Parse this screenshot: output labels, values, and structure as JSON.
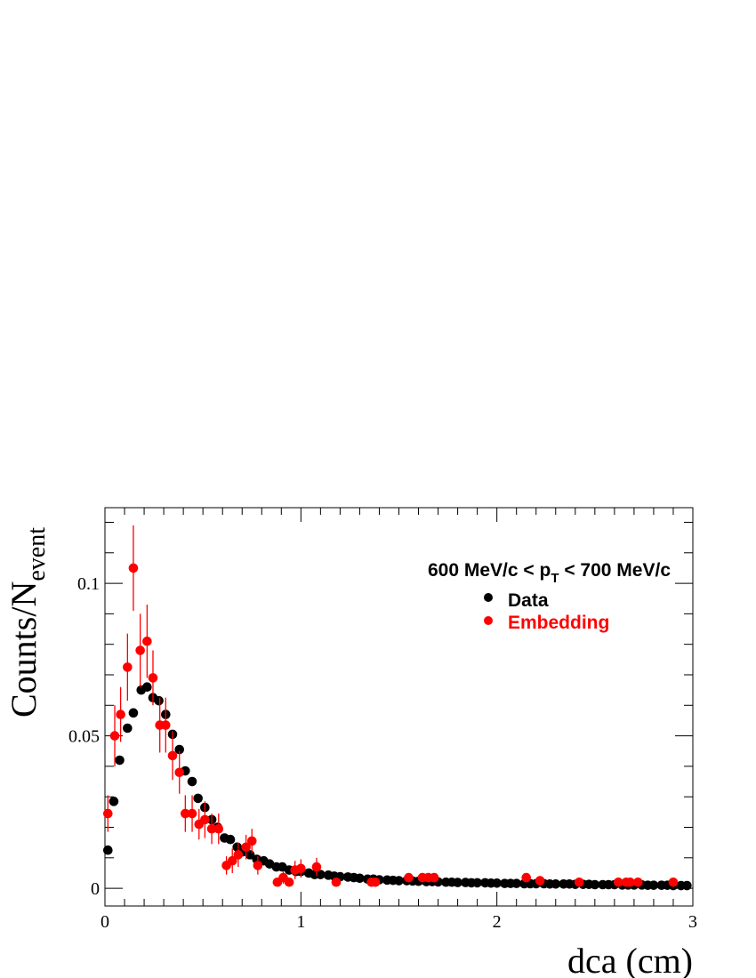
{
  "chart_data": {
    "type": "scatter",
    "xlabel": "dca (cm)",
    "ylabel": "Counts/N",
    "ylabel_sub": "event",
    "xlim": [
      0,
      3
    ],
    "ylim": [
      -0.0058,
      0.1248
    ],
    "x_ticks": [
      0,
      1,
      2,
      3
    ],
    "x_tick_labels": [
      "0",
      "1",
      "2",
      "3"
    ],
    "y_ticks": [
      0,
      0.05,
      0.1
    ],
    "y_tick_labels": [
      "0",
      "0.05",
      "0.1"
    ],
    "grid": false,
    "legend_position": "top-right",
    "annotation": {
      "parts": [
        "600 MeV/c < p",
        "T",
        " < 700 MeV/c"
      ]
    },
    "series": [
      {
        "name": "Data",
        "color": "#000000",
        "x": [
          0.015,
          0.045,
          0.075,
          0.115,
          0.145,
          0.185,
          0.215,
          0.245,
          0.275,
          0.31,
          0.345,
          0.38,
          0.41,
          0.445,
          0.475,
          0.51,
          0.545,
          0.575,
          0.61,
          0.64,
          0.675,
          0.705,
          0.74,
          0.775,
          0.81,
          0.84,
          0.875,
          0.905,
          0.94,
          0.975,
          1.0,
          1.04,
          1.07,
          1.1,
          1.14,
          1.17,
          1.2,
          1.24,
          1.27,
          1.3,
          1.34,
          1.37,
          1.4,
          1.44,
          1.47,
          1.5,
          1.54,
          1.57,
          1.6,
          1.64,
          1.67,
          1.7,
          1.74,
          1.77,
          1.8,
          1.84,
          1.87,
          1.9,
          1.94,
          1.97,
          2.0,
          2.04,
          2.07,
          2.1,
          2.14,
          2.17,
          2.2,
          2.24,
          2.27,
          2.3,
          2.34,
          2.37,
          2.4,
          2.44,
          2.47,
          2.5,
          2.54,
          2.57,
          2.6,
          2.64,
          2.67,
          2.7,
          2.74,
          2.77,
          2.8,
          2.84,
          2.87,
          2.9,
          2.94,
          2.97
        ],
        "y": [
          0.0125,
          0.0285,
          0.042,
          0.0525,
          0.0575,
          0.065,
          0.066,
          0.0625,
          0.0615,
          0.057,
          0.0505,
          0.0455,
          0.0385,
          0.035,
          0.0295,
          0.0265,
          0.0225,
          0.02,
          0.0165,
          0.016,
          0.0135,
          0.012,
          0.011,
          0.0095,
          0.009,
          0.008,
          0.007,
          0.007,
          0.006,
          0.0055,
          0.0055,
          0.005,
          0.0045,
          0.0045,
          0.0043,
          0.004,
          0.0038,
          0.0037,
          0.0035,
          0.0033,
          0.003,
          0.003,
          0.0028,
          0.0027,
          0.0026,
          0.0025,
          0.0025,
          0.0024,
          0.0023,
          0.0022,
          0.0022,
          0.0021,
          0.002,
          0.002,
          0.0019,
          0.0019,
          0.0018,
          0.0018,
          0.0018,
          0.0017,
          0.0017,
          0.0016,
          0.0016,
          0.0016,
          0.0015,
          0.0015,
          0.0015,
          0.0015,
          0.0014,
          0.0014,
          0.0014,
          0.0014,
          0.0013,
          0.0013,
          0.0013,
          0.0012,
          0.0012,
          0.0012,
          0.0012,
          0.0011,
          0.0011,
          0.0011,
          0.0011,
          0.001,
          0.001,
          0.001,
          0.001,
          0.0009,
          0.0009,
          0.0009
        ],
        "yerr": [
          0,
          0,
          0,
          0,
          0,
          0,
          0,
          0,
          0,
          0,
          0,
          0,
          0,
          0,
          0,
          0,
          0,
          0,
          0,
          0,
          0,
          0,
          0,
          0,
          0,
          0,
          0,
          0,
          0,
          0,
          0,
          0,
          0,
          0,
          0,
          0,
          0,
          0,
          0,
          0,
          0,
          0,
          0,
          0,
          0,
          0,
          0,
          0,
          0,
          0,
          0,
          0,
          0,
          0,
          0,
          0,
          0,
          0,
          0,
          0,
          0,
          0,
          0,
          0,
          0,
          0,
          0,
          0,
          0,
          0,
          0,
          0,
          0,
          0,
          0,
          0,
          0,
          0,
          0,
          0,
          0,
          0,
          0,
          0,
          0,
          0,
          0,
          0,
          0,
          0
        ]
      },
      {
        "name": "Embedding",
        "color": "#ff0000",
        "x": [
          0.015,
          0.05,
          0.08,
          0.115,
          0.145,
          0.18,
          0.215,
          0.245,
          0.28,
          0.31,
          0.345,
          0.38,
          0.41,
          0.445,
          0.48,
          0.51,
          0.545,
          0.58,
          0.62,
          0.65,
          0.68,
          0.72,
          0.75,
          0.78,
          0.88,
          0.91,
          0.94,
          0.97,
          1.0,
          1.08,
          1.18,
          1.36,
          1.38,
          1.55,
          1.62,
          1.65,
          1.68,
          2.15,
          2.22,
          2.42,
          2.62,
          2.66,
          2.68,
          2.72,
          2.9
        ],
        "y": [
          0.0245,
          0.05,
          0.057,
          0.0725,
          0.105,
          0.078,
          0.081,
          0.069,
          0.0535,
          0.0535,
          0.0435,
          0.038,
          0.0245,
          0.0245,
          0.021,
          0.0225,
          0.0195,
          0.0195,
          0.0075,
          0.009,
          0.011,
          0.0135,
          0.0155,
          0.0075,
          0.002,
          0.0035,
          0.002,
          0.006,
          0.0065,
          0.007,
          0.002,
          0.002,
          0.002,
          0.0035,
          0.0035,
          0.0035,
          0.0035,
          0.0035,
          0.0025,
          0.002,
          0.002,
          0.002,
          0.002,
          0.002,
          0.002
        ],
        "yerr": [
          0.006,
          0.01,
          0.009,
          0.011,
          0.014,
          0.012,
          0.012,
          0.009,
          0.009,
          0.009,
          0.008,
          0.007,
          0.006,
          0.006,
          0.005,
          0.006,
          0.005,
          0.005,
          0.003,
          0.004,
          0.004,
          0.004,
          0.004,
          0.003,
          0.0015,
          0.002,
          0.0015,
          0.003,
          0.003,
          0.003,
          0.0015,
          0.0015,
          0.0015,
          0.0015,
          0.0015,
          0.0015,
          0.0015,
          0.0015,
          0.0015,
          0.0015,
          0.0015,
          0.0015,
          0.0015,
          0.0015,
          0.0015
        ]
      }
    ]
  }
}
